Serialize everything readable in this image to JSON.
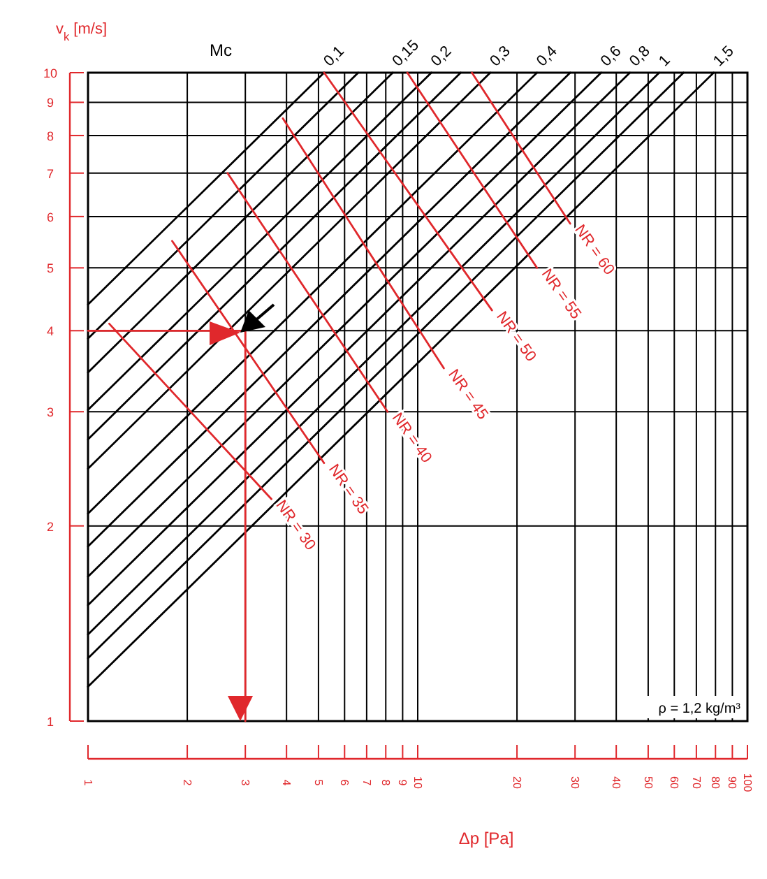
{
  "chart_data": {
    "type": "line",
    "log": "xy",
    "grid": true,
    "line_style": "solid",
    "xlabel": "Δp [Pa]",
    "ylabel": "v$_{k}$ [m/s]",
    "xlim": [
      1,
      100
    ],
    "xticks": [
      1,
      2,
      3,
      4,
      5,
      6,
      7,
      8,
      9,
      10,
      20,
      30,
      40,
      50,
      60,
      70,
      80,
      90,
      100
    ],
    "ylim": [
      1,
      10
    ],
    "yticks": [
      1,
      2,
      3,
      4,
      5,
      6,
      7,
      8,
      9,
      10
    ],
    "annotations": [
      "Mc",
      "ρ = 1,2 kg/m³"
    ],
    "series": [
      {
        "name": "0,1",
        "color": "#000000",
        "x": [
          1,
          5.2
        ],
        "values": [
          4.39,
          10
        ]
      },
      {
        "color": "#000000",
        "x": [
          1,
          6.6
        ],
        "values": [
          3.89,
          10
        ]
      },
      {
        "name": "0,15",
        "color": "#000000",
        "x": [
          1,
          8.4
        ],
        "values": [
          3.45,
          10
        ]
      },
      {
        "name": "0,2",
        "color": "#000000",
        "x": [
          1,
          11
        ],
        "values": [
          3.02,
          10
        ]
      },
      {
        "color": "#000000",
        "x": [
          1,
          13.5
        ],
        "values": [
          2.72,
          10
        ]
      },
      {
        "name": "0,3",
        "color": "#000000",
        "x": [
          1,
          16.6
        ],
        "values": [
          2.45,
          10
        ]
      },
      {
        "name": "0,4",
        "color": "#000000",
        "x": [
          1,
          23
        ],
        "values": [
          2.09,
          10
        ]
      },
      {
        "color": "#000000",
        "x": [
          1,
          29
        ],
        "values": [
          1.86,
          10
        ]
      },
      {
        "name": "0,6",
        "color": "#000000",
        "x": [
          1,
          36
        ],
        "values": [
          1.67,
          10
        ]
      },
      {
        "name": "0,8",
        "color": "#000000",
        "x": [
          1,
          44
        ],
        "values": [
          1.51,
          10
        ]
      },
      {
        "name": "1",
        "color": "#000000",
        "x": [
          1,
          54
        ],
        "values": [
          1.36,
          10
        ]
      },
      {
        "color": "#000000",
        "x": [
          1,
          64
        ],
        "values": [
          1.25,
          10
        ]
      },
      {
        "name": "1,5",
        "color": "#000000",
        "x": [
          1,
          79
        ],
        "values": [
          1.13,
          10
        ]
      },
      {
        "name": "NR = 30",
        "color": "#e0282c",
        "x": [
          1.16,
          3.6
        ],
        "values": [
          4.1,
          2.2
        ]
      },
      {
        "name": "NR = 35",
        "color": "#e0282c",
        "x": [
          1.8,
          5.2
        ],
        "values": [
          5.5,
          2.5
        ]
      },
      {
        "name": "NR = 40",
        "color": "#e0282c",
        "x": [
          2.65,
          8.1
        ],
        "values": [
          7,
          3
        ]
      },
      {
        "name": "NR = 45",
        "color": "#e0282c",
        "x": [
          3.9,
          12
        ],
        "values": [
          8.5,
          3.5
        ]
      },
      {
        "name": "NR = 50",
        "color": "#e0282c",
        "x": [
          5.2,
          16.8
        ],
        "values": [
          10,
          4.3
        ]
      },
      {
        "name": "NR = 55",
        "color": "#e0282c",
        "x": [
          9.3,
          23
        ],
        "values": [
          10,
          5
        ]
      },
      {
        "name": "NR = 60",
        "color": "#e0282c",
        "x": [
          14.6,
          29
        ],
        "values": [
          10,
          5.85
        ]
      },
      {
        "color": "#e0282c",
        "x": [
          1,
          3,
          3
        ],
        "values": [
          4,
          4,
          1
        ]
      }
    ]
  }
}
